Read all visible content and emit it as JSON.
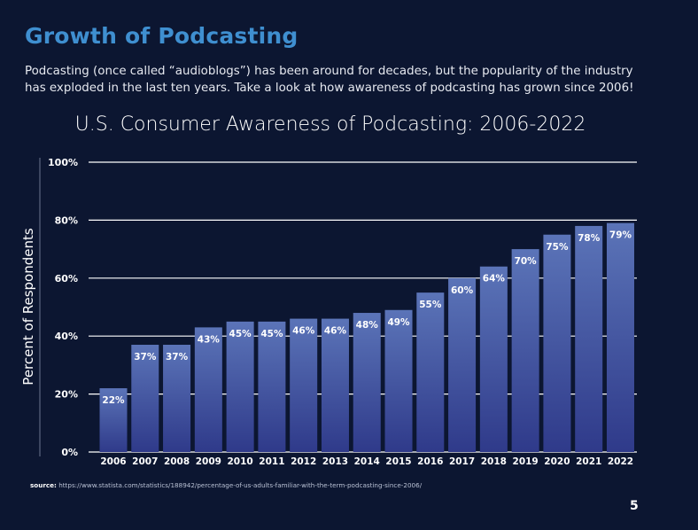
{
  "heading": "Growth of Podcasting",
  "intro": "Podcasting (once called “audioblogs”) has been around for decades, but the popularity of the industry has exploded in the last ten years. Take a look at how awareness of podcasting has grown since 2006!",
  "source": {
    "label": "source:",
    "url": "https://www.statista.com/statistics/188942/percentage-of-us-adults-familiar-with-the-term-podcasting-since-2006/"
  },
  "page_number": "5",
  "colors": {
    "background": "#0c1631",
    "heading": "#3f8fd0",
    "bar_top": "#5b74b8",
    "bar_bottom": "#2f3a8a",
    "gridline": "#ffffff"
  },
  "chart_data": {
    "type": "bar",
    "title": "U.S. Consumer Awareness of Podcasting: 2006-2022",
    "xlabel": "",
    "ylabel": "Percent of Respondents",
    "categories": [
      "2006",
      "2007",
      "2008",
      "2009",
      "2010",
      "2011",
      "2012",
      "2013",
      "2014",
      "2015",
      "2016",
      "2017",
      "2018",
      "2019",
      "2020",
      "2021",
      "2022"
    ],
    "values": [
      22,
      37,
      37,
      43,
      45,
      45,
      46,
      46,
      48,
      49,
      55,
      60,
      64,
      70,
      75,
      78,
      79
    ],
    "data_labels": [
      "22%",
      "37%",
      "37%",
      "43%",
      "45%",
      "45%",
      "46%",
      "46%",
      "48%",
      "49%",
      "55%",
      "60%",
      "64%",
      "70%",
      "75%",
      "78%",
      "79%"
    ],
    "yticks": [
      0,
      20,
      40,
      60,
      80,
      100
    ],
    "ytick_labels": [
      "0%",
      "20%",
      "40%",
      "60%",
      "80%",
      "100%"
    ],
    "ylim": [
      0,
      100
    ],
    "grid": true,
    "legend": "none"
  }
}
